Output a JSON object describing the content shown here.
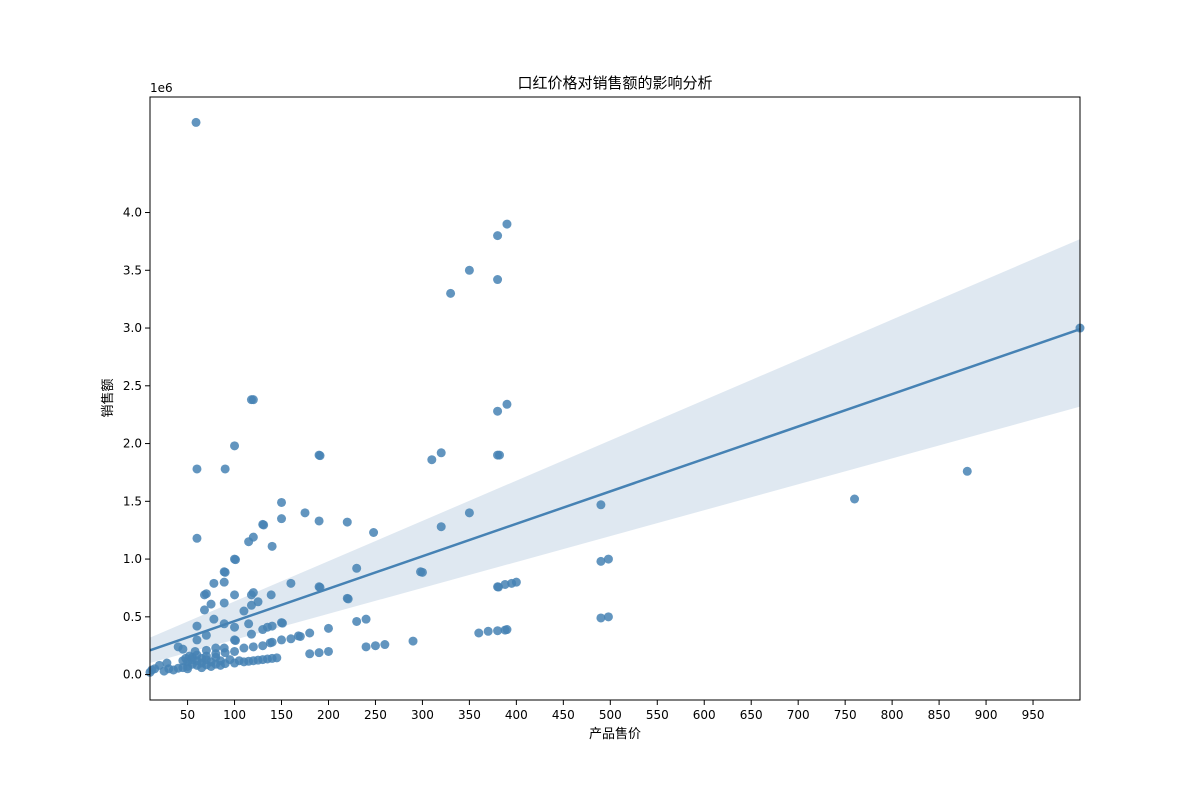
{
  "chart_data": {
    "type": "scatter",
    "title": "口红价格对销售额的影响分析",
    "xlabel": "产品售价",
    "ylabel": "销售额",
    "y_offset_label": "1e6",
    "xlim": [
      10,
      1000
    ],
    "ylim": [
      -220000,
      5000000
    ],
    "x_ticks": [
      50,
      100,
      150,
      200,
      250,
      300,
      350,
      400,
      450,
      500,
      550,
      600,
      650,
      700,
      750,
      800,
      850,
      900,
      950
    ],
    "x_tick_labels": [
      "50",
      "100",
      "150",
      "200",
      "250",
      "300",
      "350",
      "400",
      "450",
      "500",
      "550",
      "600",
      "650",
      "700",
      "750",
      "800",
      "850",
      "900",
      "950"
    ],
    "y_ticks": [
      0,
      500000,
      1000000,
      1500000,
      2000000,
      2500000,
      3000000,
      3500000,
      4000000
    ],
    "y_tick_labels": [
      "0.0",
      "0.5",
      "1.0",
      "1.5",
      "2.0",
      "2.5",
      "3.0",
      "3.5",
      "4.0"
    ],
    "grid": false,
    "legend": "none",
    "colors": {
      "points": "#4682b4",
      "line": "#4682b4",
      "band": "#dce6f0"
    },
    "points": [
      [
        59,
        4780000
      ],
      [
        390,
        3900000
      ],
      [
        380,
        3800000
      ],
      [
        350,
        3500000
      ],
      [
        380,
        3420000
      ],
      [
        330,
        3300000
      ],
      [
        1000,
        3000000
      ],
      [
        118,
        2380000
      ],
      [
        120,
        2380000
      ],
      [
        390,
        2340000
      ],
      [
        380,
        2280000
      ],
      [
        100,
        1980000
      ],
      [
        320,
        1920000
      ],
      [
        190,
        1900000
      ],
      [
        191,
        1895000
      ],
      [
        380,
        1900000
      ],
      [
        382,
        1900000
      ],
      [
        310,
        1860000
      ],
      [
        60,
        1780000
      ],
      [
        90,
        1780000
      ],
      [
        880,
        1760000
      ],
      [
        760,
        1520000
      ],
      [
        150,
        1490000
      ],
      [
        490,
        1470000
      ],
      [
        175,
        1400000
      ],
      [
        350,
        1400000
      ],
      [
        150,
        1350000
      ],
      [
        190,
        1330000
      ],
      [
        220,
        1320000
      ],
      [
        130,
        1300000
      ],
      [
        131,
        1295000
      ],
      [
        320,
        1280000
      ],
      [
        248,
        1230000
      ],
      [
        120,
        1190000
      ],
      [
        60,
        1180000
      ],
      [
        115,
        1150000
      ],
      [
        140,
        1110000
      ],
      [
        100,
        1000000
      ],
      [
        101,
        995000
      ],
      [
        498,
        1000000
      ],
      [
        490,
        980000
      ],
      [
        230,
        920000
      ],
      [
        89,
        890000
      ],
      [
        90,
        885000
      ],
      [
        298,
        890000
      ],
      [
        300,
        885000
      ],
      [
        78,
        790000
      ],
      [
        89,
        800000
      ],
      [
        160,
        790000
      ],
      [
        400,
        800000
      ],
      [
        395,
        790000
      ],
      [
        388,
        780000
      ],
      [
        380,
        760000
      ],
      [
        381,
        758000
      ],
      [
        190,
        760000
      ],
      [
        191,
        755000
      ],
      [
        68,
        690000
      ],
      [
        70,
        700000
      ],
      [
        100,
        690000
      ],
      [
        118,
        690000
      ],
      [
        120,
        710000
      ],
      [
        139,
        690000
      ],
      [
        220,
        660000
      ],
      [
        221,
        655000
      ],
      [
        89,
        620000
      ],
      [
        75,
        610000
      ],
      [
        118,
        600000
      ],
      [
        125,
        630000
      ],
      [
        68,
        560000
      ],
      [
        110,
        550000
      ],
      [
        78,
        480000
      ],
      [
        498,
        500000
      ],
      [
        490,
        490000
      ],
      [
        240,
        480000
      ],
      [
        230,
        460000
      ],
      [
        150,
        450000
      ],
      [
        151,
        445000
      ],
      [
        60,
        420000
      ],
      [
        89,
        440000
      ],
      [
        100,
        410000
      ],
      [
        115,
        440000
      ],
      [
        140,
        420000
      ],
      [
        135,
        410000
      ],
      [
        130,
        390000
      ],
      [
        200,
        400000
      ],
      [
        180,
        360000
      ],
      [
        390,
        390000
      ],
      [
        388,
        385000
      ],
      [
        380,
        380000
      ],
      [
        370,
        375000
      ],
      [
        360,
        360000
      ],
      [
        118,
        350000
      ],
      [
        70,
        340000
      ],
      [
        100,
        300000
      ],
      [
        101,
        295000
      ],
      [
        60,
        300000
      ],
      [
        150,
        300000
      ],
      [
        160,
        310000
      ],
      [
        170,
        330000
      ],
      [
        168,
        335000
      ],
      [
        140,
        280000
      ],
      [
        138,
        275000
      ],
      [
        290,
        290000
      ],
      [
        260,
        260000
      ],
      [
        250,
        250000
      ],
      [
        240,
        240000
      ],
      [
        130,
        250000
      ],
      [
        120,
        240000
      ],
      [
        110,
        230000
      ],
      [
        89,
        230000
      ],
      [
        80,
        230000
      ],
      [
        70,
        210000
      ],
      [
        40,
        240000
      ],
      [
        45,
        220000
      ],
      [
        58,
        200000
      ],
      [
        200,
        200000
      ],
      [
        180,
        180000
      ],
      [
        190,
        190000
      ],
      [
        100,
        200000
      ],
      [
        90,
        190000
      ],
      [
        80,
        180000
      ],
      [
        70,
        160000
      ],
      [
        55,
        150000
      ],
      [
        48,
        140000
      ],
      [
        60,
        170000
      ],
      [
        65,
        140000
      ],
      [
        52,
        160000
      ],
      [
        140,
        140000
      ],
      [
        145,
        145000
      ],
      [
        135,
        135000
      ],
      [
        130,
        130000
      ],
      [
        120,
        120000
      ],
      [
        110,
        110000
      ],
      [
        100,
        100000
      ],
      [
        90,
        95000
      ],
      [
        80,
        90000
      ],
      [
        70,
        85000
      ],
      [
        60,
        80000
      ],
      [
        50,
        70000
      ],
      [
        40,
        55000
      ],
      [
        30,
        50000
      ],
      [
        28,
        100000
      ],
      [
        20,
        80000
      ],
      [
        15,
        50000
      ],
      [
        12,
        40000
      ],
      [
        10,
        20000
      ],
      [
        25,
        30000
      ],
      [
        35,
        40000
      ],
      [
        45,
        60000
      ],
      [
        55,
        90000
      ],
      [
        65,
        100000
      ],
      [
        75,
        110000
      ],
      [
        85,
        120000
      ],
      [
        95,
        130000
      ],
      [
        105,
        120000
      ],
      [
        115,
        115000
      ],
      [
        125,
        125000
      ],
      [
        50,
        110000
      ],
      [
        60,
        120000
      ],
      [
        70,
        130000
      ],
      [
        80,
        150000
      ],
      [
        45,
        120000
      ],
      [
        55,
        130000
      ],
      [
        75,
        70000
      ],
      [
        65,
        60000
      ],
      [
        50,
        50000
      ],
      [
        85,
        80000
      ]
    ],
    "regression": {
      "x": [
        10,
        1000
      ],
      "y": [
        210000,
        2990000
      ],
      "ci_upper": [
        320000,
        3770000
      ],
      "ci_lower": [
        100000,
        2320000
      ]
    }
  }
}
